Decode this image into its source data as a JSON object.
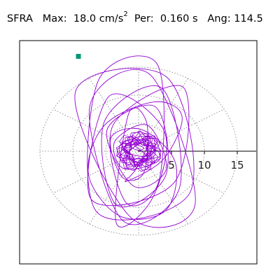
{
  "header": {
    "station": "SFRA",
    "max_label": "Max:",
    "max_value": "18.0 cm/s",
    "max_exponent": "2",
    "period_label": "Per:",
    "period_value": "0.160 s",
    "angle_label": "Ang:",
    "angle_value": "114.5"
  },
  "chart_data": {
    "type": "scatter",
    "description": "hodogram (particle-motion polar plot) of acceleration",
    "title": "",
    "xlabel": "",
    "ylabel": "",
    "radial_ticks": [
      5,
      10,
      15
    ],
    "radial_tick_labels": [
      "5",
      "10",
      "15"
    ],
    "radial_rings": [
      5,
      10,
      15
    ],
    "spoke_angles_deg": [
      0,
      30,
      60,
      90,
      120,
      150,
      180,
      210,
      240,
      270,
      300,
      330
    ],
    "range": [
      -19,
      19
    ],
    "grid": true,
    "series": [
      {
        "color": "#9400d3",
        "x": [
          0.0,
          0.8,
          -0.6,
          1.2,
          -1.4,
          0.6,
          1.9,
          -0.9,
          -2.1,
          1.3,
          2.4,
          -1.5,
          -2.8,
          1.8,
          3.1,
          -2.3,
          -3.6,
          1.4,
          4.2,
          -0.8,
          -4.8,
          2.6,
          4.1,
          -3.4,
          -5.2,
          3.6,
          6.2,
          -2.4,
          -7.4,
          1.8,
          8.6,
          -1.2,
          -9.6,
          4.3,
          7.8,
          -6.4,
          -6.2,
          2.8,
          3.2,
          -1.9,
          -3.9,
          6.8,
          5.4,
          -7.2,
          -4.5,
          3.9,
          2.1,
          -3.4,
          -1.6,
          1.2,
          0.8,
          -2.5,
          -4.2,
          0.6,
          5.6,
          4.1,
          -2.8,
          -7.6,
          -5.2,
          2.4,
          6.6,
          3.8,
          -1.9,
          -0.4,
          1.6,
          -0.8,
          0.3
        ],
        "y": [
          0.0,
          0.6,
          1.1,
          -0.9,
          -0.3,
          1.5,
          -1.2,
          -1.8,
          0.9,
          2.1,
          -0.8,
          -2.4,
          1.1,
          2.6,
          -1.6,
          -3.1,
          1.8,
          4.6,
          -3.2,
          -6.2,
          3.8,
          7.9,
          -4.4,
          -9.6,
          5.3,
          11.2,
          -6.6,
          -12.4,
          8.1,
          13.6,
          -9.4,
          -11.8,
          10.6,
          13.2,
          -7.4,
          -10.8,
          12.4,
          15.6,
          -4.8,
          -9.2,
          4.6,
          11.4,
          -5.6,
          -8.6,
          9.8,
          3.6,
          -8.4,
          -12.8,
          6.4,
          5.2,
          -3.8,
          -4.6,
          2.4,
          3.8,
          -2.1,
          -10.6,
          -11.6,
          -4.2,
          4.6,
          8.8,
          6.2,
          -1.4,
          -5.4,
          -3.2,
          1.8,
          0.6,
          0.1
        ]
      }
    ],
    "end_marker": {
      "x": -9.2,
      "y": 17.0,
      "color": "#009977"
    }
  }
}
